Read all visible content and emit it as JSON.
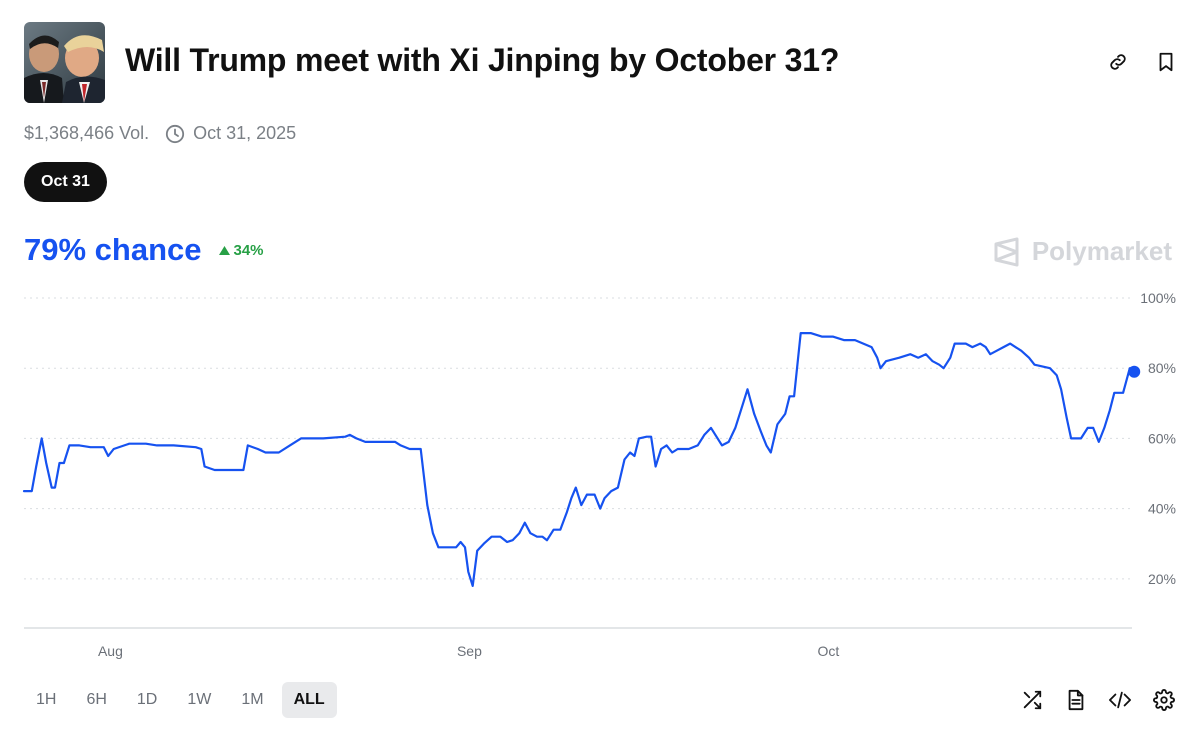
{
  "header": {
    "title": "Will Trump meet with Xi Jinping by October 31?",
    "thumbnail_alt": "Xi Jinping and Donald Trump"
  },
  "meta": {
    "volume": "$1,368,466 Vol.",
    "end_date": "Oct 31, 2025"
  },
  "outcome_pill": "Oct 31",
  "probability": {
    "label": "79% chance",
    "change": "34%",
    "change_direction": "up"
  },
  "brand": "Polymarket",
  "time_ranges": [
    {
      "label": "1H",
      "active": false
    },
    {
      "label": "6H",
      "active": false
    },
    {
      "label": "1D",
      "active": false
    },
    {
      "label": "1W",
      "active": false
    },
    {
      "label": "1M",
      "active": false
    },
    {
      "label": "ALL",
      "active": true
    }
  ],
  "colors": {
    "accent": "#1652f0",
    "up": "#27a046",
    "muted": "#7b8086",
    "grid": "#dadde1"
  },
  "chart_data": {
    "type": "line",
    "x_ticks": [
      "Aug",
      "Sep",
      "Oct"
    ],
    "x_tick_positions": [
      7.8,
      40.2,
      72.6
    ],
    "y_ticks": [
      "20%",
      "40%",
      "60%",
      "80%",
      "100%"
    ],
    "y_tick_values": [
      20,
      40,
      60,
      80,
      100
    ],
    "ylim": [
      6,
      100
    ],
    "xlim": [
      0,
      100
    ],
    "grid": true,
    "series": [
      {
        "values": [
          [
            0,
            45
          ],
          [
            0.7,
            45
          ],
          [
            1.1,
            52
          ],
          [
            1.6,
            60
          ],
          [
            2.0,
            53
          ],
          [
            2.5,
            46
          ],
          [
            2.8,
            46
          ],
          [
            3.2,
            53
          ],
          [
            3.6,
            53
          ],
          [
            4.1,
            58
          ],
          [
            5.0,
            58
          ],
          [
            6.0,
            57.5
          ],
          [
            7.2,
            57.5
          ],
          [
            7.6,
            55
          ],
          [
            8.1,
            57
          ],
          [
            9.5,
            58.5
          ],
          [
            11.0,
            58.5
          ],
          [
            12.0,
            58
          ],
          [
            13.5,
            58
          ],
          [
            15.5,
            57.5
          ],
          [
            16.0,
            57
          ],
          [
            16.3,
            52
          ],
          [
            17.2,
            51
          ],
          [
            18.5,
            51
          ],
          [
            19.8,
            51
          ],
          [
            20.2,
            58
          ],
          [
            21.1,
            57
          ],
          [
            21.8,
            56
          ],
          [
            23.0,
            56
          ],
          [
            24.0,
            58
          ],
          [
            25.0,
            60
          ],
          [
            27.0,
            60
          ],
          [
            29.0,
            60.5
          ],
          [
            29.4,
            61
          ],
          [
            30.0,
            60
          ],
          [
            30.8,
            59
          ],
          [
            32.0,
            59
          ],
          [
            33.5,
            59
          ],
          [
            34.0,
            58
          ],
          [
            34.8,
            57
          ],
          [
            35.4,
            57
          ],
          [
            35.8,
            57
          ],
          [
            36.4,
            41
          ],
          [
            36.9,
            33
          ],
          [
            37.4,
            29
          ],
          [
            38.5,
            29
          ],
          [
            39.0,
            29
          ],
          [
            39.4,
            30.5
          ],
          [
            39.8,
            29
          ],
          [
            40.1,
            22
          ],
          [
            40.5,
            18
          ],
          [
            40.9,
            28
          ],
          [
            41.5,
            30
          ],
          [
            42.2,
            32
          ],
          [
            43.0,
            32
          ],
          [
            43.6,
            30.5
          ],
          [
            44.1,
            31
          ],
          [
            44.7,
            33
          ],
          [
            45.2,
            36
          ],
          [
            45.7,
            33
          ],
          [
            46.3,
            32
          ],
          [
            46.8,
            32
          ],
          [
            47.2,
            31
          ],
          [
            47.8,
            34
          ],
          [
            48.4,
            34
          ],
          [
            49.0,
            39
          ],
          [
            49.4,
            43
          ],
          [
            49.8,
            46
          ],
          [
            50.3,
            41
          ],
          [
            50.8,
            44
          ],
          [
            51.5,
            44
          ],
          [
            52.0,
            40
          ],
          [
            52.4,
            43
          ],
          [
            53.0,
            45
          ],
          [
            53.6,
            46
          ],
          [
            54.2,
            54
          ],
          [
            54.7,
            56
          ],
          [
            55.1,
            55
          ],
          [
            55.5,
            60
          ],
          [
            56.2,
            60.5
          ],
          [
            56.6,
            60.5
          ],
          [
            57.0,
            52
          ],
          [
            57.5,
            57
          ],
          [
            58.0,
            58
          ],
          [
            58.5,
            56
          ],
          [
            59.0,
            57
          ],
          [
            60.0,
            57
          ],
          [
            60.8,
            58
          ],
          [
            61.4,
            61
          ],
          [
            62.0,
            63
          ],
          [
            62.6,
            60
          ],
          [
            63.0,
            58
          ],
          [
            63.6,
            59
          ],
          [
            64.2,
            63
          ],
          [
            64.7,
            68
          ],
          [
            65.3,
            74
          ],
          [
            65.9,
            67
          ],
          [
            66.5,
            62
          ],
          [
            67.0,
            58
          ],
          [
            67.4,
            56
          ],
          [
            68.0,
            64
          ],
          [
            68.7,
            67
          ],
          [
            69.1,
            72
          ],
          [
            69.5,
            72
          ],
          [
            69.8,
            81
          ],
          [
            70.1,
            90
          ],
          [
            71.0,
            90
          ],
          [
            72.0,
            89
          ],
          [
            73.0,
            89
          ],
          [
            74.0,
            88
          ],
          [
            75.0,
            88
          ],
          [
            76.5,
            86
          ],
          [
            77.0,
            83
          ],
          [
            77.3,
            80
          ],
          [
            77.8,
            82
          ],
          [
            79.0,
            83
          ],
          [
            80.0,
            84
          ],
          [
            80.7,
            83
          ],
          [
            81.4,
            84
          ],
          [
            82.0,
            82
          ],
          [
            82.6,
            81
          ],
          [
            83.0,
            80
          ],
          [
            83.6,
            83
          ],
          [
            84.0,
            87
          ],
          [
            85.0,
            87
          ],
          [
            85.6,
            86
          ],
          [
            86.3,
            87
          ],
          [
            86.8,
            86
          ],
          [
            87.2,
            84
          ],
          [
            87.8,
            85
          ],
          [
            88.4,
            86
          ],
          [
            89.0,
            87
          ],
          [
            90.0,
            85
          ],
          [
            90.7,
            83
          ],
          [
            91.2,
            81
          ],
          [
            92.6,
            80
          ],
          [
            93.2,
            78
          ],
          [
            93.6,
            74
          ],
          [
            94.1,
            66
          ],
          [
            94.5,
            60
          ],
          [
            95.4,
            60
          ],
          [
            96.0,
            63
          ],
          [
            96.5,
            63
          ],
          [
            97.0,
            59
          ],
          [
            97.5,
            63
          ],
          [
            98.0,
            68
          ],
          [
            98.4,
            73
          ],
          [
            99.2,
            73
          ],
          [
            99.8,
            80
          ],
          [
            100.2,
            79.5
          ]
        ]
      }
    ],
    "current_point": {
      "x": 100.2,
      "y": 79
    }
  }
}
